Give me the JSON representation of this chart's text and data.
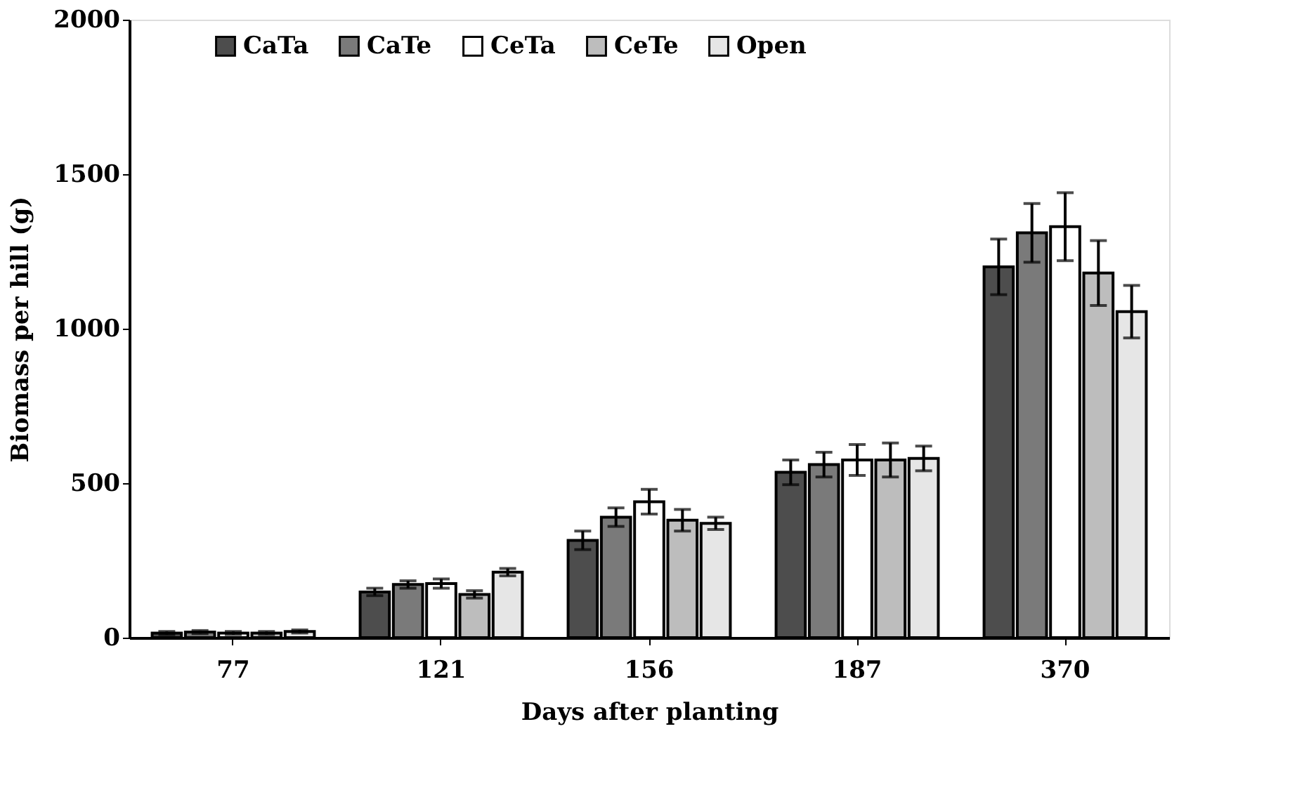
{
  "chart_data": {
    "type": "bar",
    "xlabel": "Days after planting",
    "ylabel": "Biomass per hill (g)",
    "categories": [
      "77",
      "121",
      "156",
      "187",
      "370"
    ],
    "series": [
      {
        "name": "CaTa",
        "color": "#4d4d4d",
        "values": [
          15,
          148,
          315,
          535,
          1200
        ],
        "errors": [
          5,
          12,
          30,
          40,
          90
        ]
      },
      {
        "name": "CaTe",
        "color": "#7a7a7a",
        "values": [
          18,
          172,
          390,
          560,
          1310
        ],
        "errors": [
          5,
          12,
          30,
          40,
          95
        ]
      },
      {
        "name": "CeTa",
        "color": "#ffffff",
        "values": [
          15,
          175,
          440,
          575,
          1330
        ],
        "errors": [
          5,
          15,
          40,
          50,
          110
        ]
      },
      {
        "name": "CeTe",
        "color": "#bdbdbd",
        "values": [
          15,
          140,
          380,
          575,
          1180
        ],
        "errors": [
          5,
          12,
          35,
          55,
          105
        ]
      },
      {
        "name": "Open",
        "color": "#e6e6e6",
        "values": [
          20,
          212,
          370,
          580,
          1055
        ],
        "errors": [
          5,
          12,
          20,
          40,
          85
        ]
      }
    ],
    "ylim": [
      0,
      2000
    ],
    "yticks": [
      0,
      500,
      1000,
      1500,
      2000
    ],
    "grid": false,
    "legend": "top"
  }
}
